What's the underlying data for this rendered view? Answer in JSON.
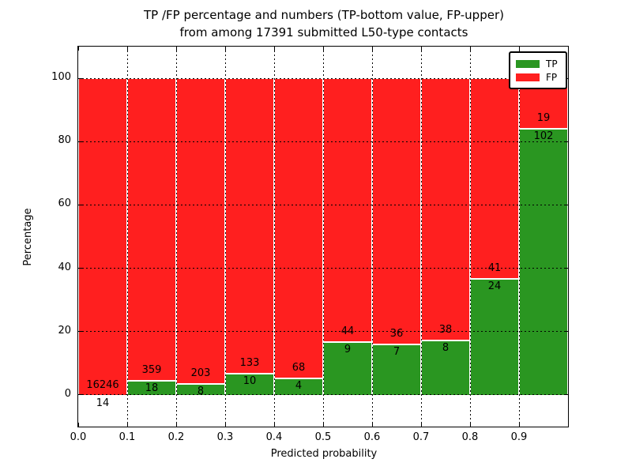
{
  "figure": {
    "title_line1": "TP /FP percentage and numbers (TP-bottom value, FP-upper)",
    "title_line2": "from among 17391 submitted L50-type contacts"
  },
  "chart_data": {
    "type": "bar",
    "stacked": true,
    "title": "TP /FP percentage and numbers (TP-bottom value, FP-upper) from among 17391 submitted L50-type contacts",
    "xlabel": "Predicted probability",
    "ylabel": "Percentage",
    "xlim": [
      0.0,
      1.0
    ],
    "ylim": [
      -10,
      110
    ],
    "grid": true,
    "total_contacts": 17391,
    "x_tick_labels": [
      "0.0",
      "0.1",
      "0.2",
      "0.3",
      "0.4",
      "0.5",
      "0.6",
      "0.7",
      "0.8",
      "0.9"
    ],
    "y_ticks": [
      0,
      20,
      40,
      60,
      80,
      100
    ],
    "y_tick_labels": [
      "0",
      "20",
      "40",
      "60",
      "80",
      "100"
    ],
    "bin_width": 0.1,
    "bins": [
      {
        "x_range": [
          0.0,
          0.1
        ],
        "tp": 14,
        "fp": 16246
      },
      {
        "x_range": [
          0.1,
          0.2
        ],
        "tp": 18,
        "fp": 359
      },
      {
        "x_range": [
          0.2,
          0.3
        ],
        "tp": 8,
        "fp": 203
      },
      {
        "x_range": [
          0.3,
          0.4
        ],
        "tp": 10,
        "fp": 133
      },
      {
        "x_range": [
          0.4,
          0.5
        ],
        "tp": 4,
        "fp": 68
      },
      {
        "x_range": [
          0.5,
          0.6
        ],
        "tp": 9,
        "fp": 44
      },
      {
        "x_range": [
          0.6,
          0.7
        ],
        "tp": 7,
        "fp": 36
      },
      {
        "x_range": [
          0.7,
          0.8
        ],
        "tp": 8,
        "fp": 38
      },
      {
        "x_range": [
          0.8,
          0.9
        ],
        "tp": 24,
        "fp": 41
      },
      {
        "x_range": [
          0.9,
          1.0
        ],
        "tp": 102,
        "fp": 19
      }
    ],
    "legend": {
      "position": "upper right",
      "entries": [
        {
          "label": "TP",
          "color": "#2a9621"
        },
        {
          "label": "FP",
          "color": "#ff1f1f"
        }
      ]
    }
  },
  "colors": {
    "tp": "#2a9621",
    "fp": "#ff1f1f",
    "background": "#ffffff",
    "text": "#000000"
  }
}
